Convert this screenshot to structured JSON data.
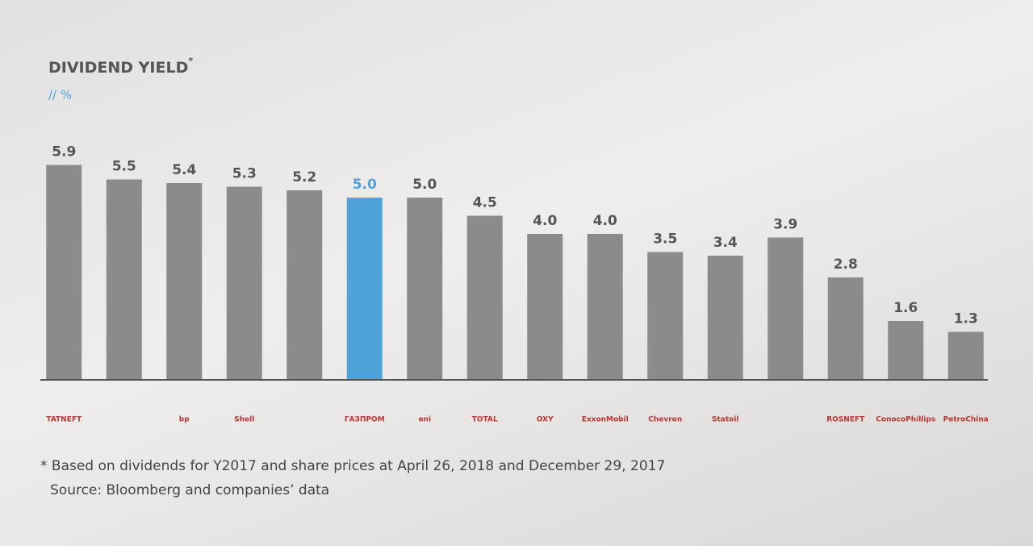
{
  "chart_data": {
    "type": "bar",
    "title": "DIVIDEND YIELD",
    "title_mark": "*",
    "subtitle": "// %",
    "categories": [
      "TATNEFT",
      null,
      "bp",
      "Shell",
      null,
      "ГАЗПРОМ",
      "eni",
      "TOTAL",
      "OXY",
      "ExxonMobil",
      "Chevron",
      "Statoil",
      null,
      "ROSNEFT",
      "ConocoPhillips",
      "PetroChina"
    ],
    "values": [
      5.9,
      5.5,
      5.4,
      5.3,
      5.2,
      5.0,
      5.0,
      4.5,
      4.0,
      4.0,
      3.5,
      3.4,
      3.9,
      2.8,
      1.6,
      1.3
    ],
    "value_labels": [
      "5.9",
      "5.5",
      "5.4",
      "5.3",
      "5.2",
      "5.0",
      "5.0",
      "4.5",
      "4.0",
      "4.0",
      "3.5",
      "3.4",
      "3.9",
      "2.8",
      "1.6",
      "1.3"
    ],
    "colors": [
      "#8b8b8b",
      "#8b8b8b",
      "#8b8b8b",
      "#8b8b8b",
      "#8b8b8b",
      "#4fa3d9",
      "#8b8b8b",
      "#8b8b8b",
      "#8b8b8b",
      "#8b8b8b",
      "#8b8b8b",
      "#8b8b8b",
      "#8b8b8b",
      "#8b8b8b",
      "#8b8b8b",
      "#8b8b8b"
    ],
    "label_colors": [
      "#555",
      "#555",
      "#555",
      "#555",
      "#555",
      "#4fa3d9",
      "#555",
      "#555",
      "#555",
      "#555",
      "#555",
      "#555",
      "#555",
      "#555",
      "#555",
      "#555"
    ],
    "ylim": [
      0,
      6
    ],
    "footnotes": [
      "* Based on dividends for Y2017 and share prices at April 26, 2018 and December 29, 2017",
      "Source: Bloomberg and companies’ data"
    ]
  }
}
